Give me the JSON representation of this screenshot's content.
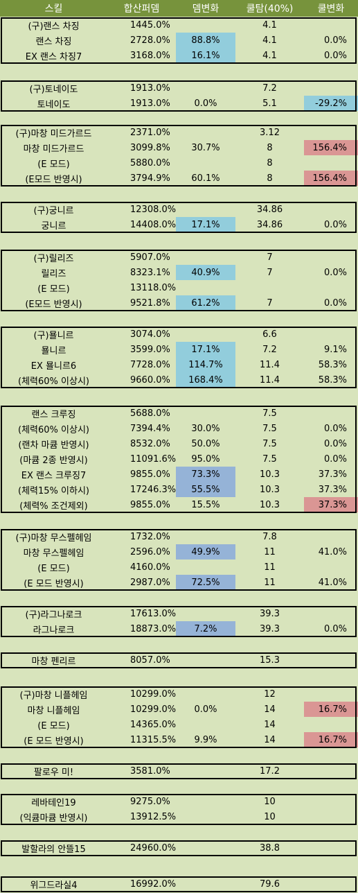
{
  "headers": [
    "스킬",
    "합산퍼뎀",
    "뎀변화",
    "쿨탐(40%)",
    "쿨변화"
  ],
  "colors": {
    "header_bg": "#77933c",
    "row_bg": "#d8e4bc",
    "blue": "#92cddc",
    "purple_blue": "#95b3d7",
    "red": "#da9694"
  },
  "groups": [
    {
      "rows": [
        {
          "skill": "(구)랜스 차징",
          "dmg": "1445.0%",
          "dmg_change": "",
          "cool": "4.1",
          "cool_change": ""
        },
        {
          "skill": "랜스 차징",
          "dmg": "2728.0%",
          "dmg_change": "88.8%",
          "dc_hl": "blue",
          "cool": "4.1",
          "cool_change": "0.0%"
        },
        {
          "skill": "EX 랜스 차징7",
          "dmg": "3168.0%",
          "dmg_change": "16.1%",
          "dc_hl": "blue",
          "cool": "4.1",
          "cool_change": "0.0%"
        }
      ]
    },
    {
      "rows": [
        {
          "skill": "(구)토네이도",
          "dmg": "1913.0%",
          "dmg_change": "",
          "cool": "7.2",
          "cool_change": ""
        },
        {
          "skill": "토네이도",
          "dmg": "1913.0%",
          "dmg_change": "0.0%",
          "cool": "5.1",
          "cool_change": "-29.2%",
          "cc_hl": "blue"
        }
      ]
    },
    {
      "rows": [
        {
          "skill": "(구)마창 미드가르드",
          "dmg": "2371.0%",
          "dmg_change": "",
          "cool": "3.12",
          "cool_change": ""
        },
        {
          "skill": "마창 미드가르드",
          "dmg": "3099.8%",
          "dmg_change": "30.7%",
          "cool": "8",
          "cool_change": "156.4%",
          "cc_hl": "red"
        },
        {
          "skill": "(E 모드)",
          "dmg": "5880.0%",
          "dmg_change": "",
          "cool": "8",
          "cool_change": ""
        },
        {
          "skill": "(E모드 반영시)",
          "dmg": "3794.9%",
          "dmg_change": "60.1%",
          "cool": "8",
          "cool_change": "156.4%",
          "cc_hl": "red"
        }
      ]
    },
    {
      "rows": [
        {
          "skill": "(구)궁니르",
          "dmg": "12308.0%",
          "dmg_change": "",
          "cool": "34.86",
          "cool_change": ""
        },
        {
          "skill": "궁니르",
          "dmg": "14408.0%",
          "dmg_change": "17.1%",
          "dc_hl": "blue",
          "cool": "34.86",
          "cool_change": "0.0%"
        }
      ]
    },
    {
      "rows": [
        {
          "skill": "(구)릴리즈",
          "dmg": "5907.0%",
          "dmg_change": "",
          "cool": "7",
          "cool_change": ""
        },
        {
          "skill": "릴리즈",
          "dmg": "8323.1%",
          "dmg_change": "40.9%",
          "dc_hl": "blue",
          "cool": "7",
          "cool_change": "0.0%"
        },
        {
          "skill": "(E 모드)",
          "dmg": "13118.0%",
          "dmg_change": "",
          "cool": "",
          "cool_change": ""
        },
        {
          "skill": "(E모드 반영시)",
          "dmg": "9521.8%",
          "dmg_change": "61.2%",
          "dc_hl": "blue",
          "cool": "7",
          "cool_change": "0.0%"
        }
      ]
    },
    {
      "rows": [
        {
          "skill": "(구)묠니르",
          "dmg": "3074.0%",
          "dmg_change": "",
          "cool": "6.6",
          "cool_change": ""
        },
        {
          "skill": "묠니르",
          "dmg": "3599.0%",
          "dmg_change": "17.1%",
          "dc_hl": "blue",
          "cool": "7.2",
          "cool_change": "9.1%"
        },
        {
          "skill": "EX 묠니르6",
          "dmg": "7728.0%",
          "dmg_change": "114.7%",
          "dc_hl": "blue",
          "cool": "11.4",
          "cool_change": "58.3%"
        },
        {
          "skill": "(체력60% 이상시)",
          "dmg": "9660.0%",
          "dmg_change": "168.4%",
          "dc_hl": "blue",
          "cool": "11.4",
          "cool_change": "58.3%"
        }
      ]
    },
    {
      "rows": [
        {
          "skill": "랜스 크루징",
          "dmg": "5688.0%",
          "dmg_change": "",
          "cool": "7.5",
          "cool_change": ""
        },
        {
          "skill": "(체력60% 이상시)",
          "dmg": "7394.4%",
          "dmg_change": "30.0%",
          "cool": "7.5",
          "cool_change": "0.0%"
        },
        {
          "skill": "(랜차 마큠 반영시)",
          "dmg": "8532.0%",
          "dmg_change": "50.0%",
          "cool": "7.5",
          "cool_change": "0.0%"
        },
        {
          "skill": "(마큠 2종 반영시)",
          "dmg": "11091.6%",
          "dmg_change": "95.0%",
          "cool": "7.5",
          "cool_change": "0.0%"
        },
        {
          "skill": "EX 랜스 크루징7",
          "dmg": "9855.0%",
          "dmg_change": "73.3%",
          "dc_hl": "pblue",
          "cool": "10.3",
          "cool_change": "37.3%"
        },
        {
          "skill": "(체력15% 이하시)",
          "dmg": "17246.3%",
          "dmg_change": "55.5%",
          "dc_hl": "pblue",
          "cool": "10.3",
          "cool_change": "37.3%"
        },
        {
          "skill": "(체력% 조건제외)",
          "dmg": "9855.0%",
          "dmg_change": "15.5%",
          "cool": "10.3",
          "cool_change": "37.3%",
          "cc_hl": "red"
        }
      ]
    },
    {
      "rows": [
        {
          "skill": "(구)마창 무스펠헤임",
          "dmg": "1732.0%",
          "dmg_change": "",
          "cool": "7.8",
          "cool_change": ""
        },
        {
          "skill": "마창 무스펠헤임",
          "dmg": "2596.0%",
          "dmg_change": "49.9%",
          "dc_hl": "pblue",
          "cool": "11",
          "cool_change": "41.0%"
        },
        {
          "skill": "(E 모드)",
          "dmg": "4160.0%",
          "dmg_change": "",
          "cool": "11",
          "cool_change": ""
        },
        {
          "skill": "(E 모드 반영시)",
          "dmg": "2987.0%",
          "dmg_change": "72.5%",
          "dc_hl": "pblue",
          "cool": "11",
          "cool_change": "41.0%"
        }
      ]
    },
    {
      "rows": [
        {
          "skill": "(구)라그나로크",
          "dmg": "17613.0%",
          "dmg_change": "",
          "cool": "39.3",
          "cool_change": ""
        },
        {
          "skill": "라그나로크",
          "dmg": "18873.0%",
          "dmg_change": "7.2%",
          "dc_hl": "pblue",
          "cool": "39.3",
          "cool_change": "0.0%"
        }
      ]
    },
    {
      "rows": [
        {
          "skill": "마창 펜리르",
          "dmg": "8057.0%",
          "dmg_change": "",
          "cool": "15.3",
          "cool_change": ""
        }
      ]
    },
    {
      "rows": [
        {
          "skill": "(구)마창 니플헤임",
          "dmg": "10299.0%",
          "dmg_change": "",
          "cool": "12",
          "cool_change": ""
        },
        {
          "skill": "마창 니플헤임",
          "dmg": "10299.0%",
          "dmg_change": "0.0%",
          "cool": "14",
          "cool_change": "16.7%",
          "cc_hl": "red"
        },
        {
          "skill": "(E 모드)",
          "dmg": "14365.0%",
          "dmg_change": "",
          "cool": "14",
          "cool_change": ""
        },
        {
          "skill": "(E 모드 반영시)",
          "dmg": "11315.5%",
          "dmg_change": "9.9%",
          "cool": "14",
          "cool_change": "16.7%",
          "cc_hl": "red"
        }
      ]
    },
    {
      "rows": [
        {
          "skill": "팔로우 미!",
          "dmg": "3581.0%",
          "dmg_change": "",
          "cool": "17.2",
          "cool_change": ""
        }
      ]
    },
    {
      "rows": [
        {
          "skill": "레바테인19",
          "dmg": "9275.0%",
          "dmg_change": "",
          "cool": "10",
          "cool_change": ""
        },
        {
          "skill": "(익큠마큠 반영시)",
          "dmg": "13912.5%",
          "dmg_change": "",
          "cool": "10",
          "cool_change": ""
        }
      ]
    },
    {
      "rows": [
        {
          "skill": "발할라의 안뜰15",
          "dmg": "24960.0%",
          "dmg_change": "",
          "cool": "38.8",
          "cool_change": ""
        }
      ]
    },
    {
      "rows": [
        {
          "skill": "위그드라실4",
          "dmg": "16992.0%",
          "dmg_change": "",
          "cool": "79.6",
          "cool_change": ""
        }
      ]
    }
  ]
}
